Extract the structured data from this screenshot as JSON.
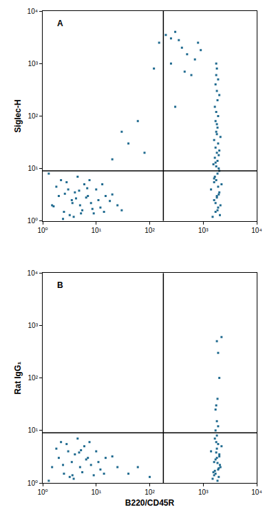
{
  "chart_data": [
    {
      "type": "scatter",
      "label": "A",
      "y_label": "Siglec-H",
      "color": "#1f6a8f",
      "marker": "square",
      "log": true,
      "xlim": [
        1,
        10000
      ],
      "ylim": [
        1,
        10000
      ],
      "xticks": [
        {
          "value": 1,
          "label": "10⁰"
        },
        {
          "value": 10,
          "label": "10¹"
        },
        {
          "value": 100,
          "label": "10²"
        },
        {
          "value": 1000,
          "label": "10³"
        },
        {
          "value": 10000,
          "label": "10⁴"
        }
      ],
      "yticks": [
        {
          "value": 1,
          "label": "10⁰"
        },
        {
          "value": 10,
          "label": "10¹"
        },
        {
          "value": 100,
          "label": "10²"
        },
        {
          "value": 1000,
          "label": "10³"
        },
        {
          "value": 10000,
          "label": "10⁴"
        }
      ],
      "gates": {
        "x": 180,
        "y": 9
      },
      "x": [
        1.5,
        2,
        2.5,
        3,
        3.5,
        4,
        5,
        6,
        7,
        8,
        10,
        12,
        15,
        2.2,
        3.2,
        4.5,
        5.5,
        6.5,
        9,
        1.8,
        2.8,
        3.8,
        4.8,
        7.5,
        11,
        14,
        20,
        25,
        1.3,
        2.4,
        3.6,
        5.2,
        6.8,
        1.6,
        2.6,
        4.2,
        8.5,
        13,
        18,
        30,
        1500,
        1700,
        1900,
        2100,
        1600,
        1800,
        2000,
        1400,
        2200,
        1750,
        1650,
        1850,
        1950,
        1550,
        2050,
        1700,
        1800,
        1900,
        1600,
        2000,
        1750,
        1850,
        1650,
        1950,
        1800,
        1700,
        1900,
        1600,
        2100,
        1750,
        1850,
        1800,
        1700,
        1900,
        1750,
        1650,
        1850,
        2000,
        1800,
        1700,
        1900,
        1750,
        1800,
        1850,
        1950,
        1600,
        1700,
        2000,
        1800,
        1750,
        150,
        200,
        250,
        300,
        400,
        350,
        500,
        700,
        800,
        900,
        250,
        120,
        600,
        450,
        60,
        40,
        80,
        30,
        20,
        300
      ],
      "y": [
        2,
        3,
        1.5,
        4,
        2.5,
        3.5,
        2,
        5,
        3,
        2.2,
        4,
        1.8,
        3,
        6,
        1.3,
        7,
        1.6,
        2.8,
        1.4,
        4.5,
        5.5,
        1.2,
        3.8,
        6,
        2.5,
        1.5,
        3.2,
        2,
        8,
        1.1,
        2.2,
        1.4,
        4.2,
        1.9,
        3.3,
        2.7,
        1.7,
        5,
        2.4,
        1.6,
        1.2,
        1.5,
        1.8,
        2,
        2.5,
        3,
        3.5,
        4,
        5,
        6,
        7,
        8,
        10,
        12,
        1.3,
        2.2,
        2.8,
        4.5,
        5.5,
        9,
        11,
        14,
        16,
        18,
        20,
        25,
        30,
        35,
        40,
        50,
        60,
        70,
        80,
        100,
        120,
        150,
        200,
        250,
        300,
        400,
        500,
        600,
        800,
        1.6,
        3.2,
        6.5,
        13,
        22,
        45,
        1000,
        2500,
        3500,
        3000,
        4000,
        2000,
        2800,
        1500,
        1200,
        2500,
        1800,
        1000,
        800,
        600,
        700,
        80,
        30,
        20,
        50,
        15,
        150
      ]
    },
    {
      "type": "scatter",
      "label": "B",
      "y_label": "Rat IgG₁",
      "x_label": "B220/CD45R",
      "color": "#1f6a8f",
      "marker": "square",
      "log": true,
      "xlim": [
        1,
        10000
      ],
      "ylim": [
        1,
        10000
      ],
      "xticks": [
        {
          "value": 1,
          "label": "10⁰"
        },
        {
          "value": 10,
          "label": "10¹"
        },
        {
          "value": 100,
          "label": "10²"
        },
        {
          "value": 1000,
          "label": "10³"
        },
        {
          "value": 10000,
          "label": "10⁴"
        }
      ],
      "yticks": [
        {
          "value": 1,
          "label": "10⁰"
        },
        {
          "value": 10,
          "label": "10¹"
        },
        {
          "value": 100,
          "label": "10²"
        },
        {
          "value": 1000,
          "label": "10³"
        },
        {
          "value": 10000,
          "label": "10⁴"
        }
      ],
      "gates": {
        "x": 180,
        "y": 9
      },
      "x": [
        1.5,
        2,
        2.5,
        3,
        3.5,
        4,
        5,
        6,
        7,
        8,
        10,
        12,
        15,
        2.2,
        3.2,
        4.5,
        5.5,
        6.5,
        9,
        1.8,
        2.8,
        3.8,
        4.8,
        7.5,
        11,
        14,
        20,
        25,
        1.3,
        2.4,
        3.6,
        5.2,
        40,
        60,
        100,
        1500,
        1700,
        1900,
        2100,
        1600,
        1800,
        2000,
        1400,
        2200,
        1750,
        1650,
        1850,
        1950,
        1550,
        2050,
        1700,
        1800,
        1900,
        1600,
        2000,
        1750,
        1850,
        1650,
        1950,
        1800,
        1700,
        1900,
        1800,
        1750,
        1850,
        2000,
        1900,
        2200,
        1800,
        1700
      ],
      "y": [
        2,
        3,
        1.5,
        4,
        2.5,
        3.5,
        2,
        5,
        3,
        2.2,
        4,
        1.8,
        3,
        6,
        1.3,
        7,
        1.6,
        2.8,
        1.4,
        4.5,
        5.5,
        1.2,
        3.8,
        6,
        2.5,
        1.5,
        3.2,
        2,
        1.1,
        2.2,
        1.4,
        4.2,
        1.5,
        2,
        1.3,
        1.2,
        1.5,
        1.8,
        2,
        2.5,
        3,
        3.5,
        4,
        5,
        6,
        7,
        1.1,
        1.3,
        1.6,
        2.2,
        2.8,
        4.5,
        5.5,
        1.4,
        3.2,
        3.8,
        2.4,
        1.7,
        1.9,
        8,
        10,
        12,
        15,
        30,
        40,
        100,
        300,
        600,
        500,
        25
      ]
    }
  ]
}
